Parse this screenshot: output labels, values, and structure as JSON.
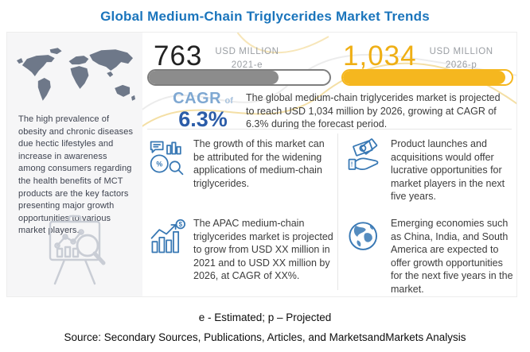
{
  "title": "Global Medium-Chain Triglycerides Market Trends",
  "colors": {
    "title_blue": "#1b75bc",
    "accent_yellow": "#f5b71f",
    "bar_gray": "#8c8c8c",
    "cagr_light_blue": "#7fa8d2",
    "cagr_dark_blue": "#2b5ca8",
    "icon_blue": "#3878b4",
    "map_gray": "#6e7889",
    "panel_gray": "#f6f6f7"
  },
  "left_panel": {
    "description": "The high prevalence of obesity and chronic diseases due hectic lifestyles and increase in awareness among consumers regarding the health benefits of MCT products are the key factors presenting major growth opportunities to various market players.",
    "map_icon": "world-map",
    "bottom_icon": "chart-magnifier-easel-icon"
  },
  "stats": {
    "current": {
      "value": "763",
      "unit": "USD MILLION",
      "period": "2021-e",
      "fill_percent": 72
    },
    "projected": {
      "value": "1,034",
      "unit": "USD MILLION",
      "period": "2026-p",
      "fill_percent": 96
    }
  },
  "cagr": {
    "label": "CAGR",
    "of": "of",
    "value": "6.3%"
  },
  "summary": "The global medium-chain triglycerides market is projected to reach USD 1,034 million by 2026, growing at CAGR of 6.3% during the forecast period.",
  "highlights": [
    {
      "icon": "chart-analysis-icon",
      "text": "The growth of this market can be attributed for the widening applications of medium-chain triglycerides."
    },
    {
      "icon": "money-hand-icon",
      "text": "Product launches and acquisitions would offer lucrative opportunities for market players in the next five years."
    },
    {
      "icon": "growth-chart-icon",
      "text": "The APAC medium-chain triglycerides market is projected to grow from USD XX million in 2021 and to USD XX million by 2026, at CAGR of XX%."
    },
    {
      "icon": "globe-icon",
      "text": "Emerging economies such as China, India, and South America are expected to offer growth opportunities for the next five years in the market."
    }
  ],
  "footer": {
    "note": "e - Estimated; p – Projected",
    "source": "Source: Secondary Sources, Publications, Articles, and MarketsandMarkets Analysis"
  }
}
